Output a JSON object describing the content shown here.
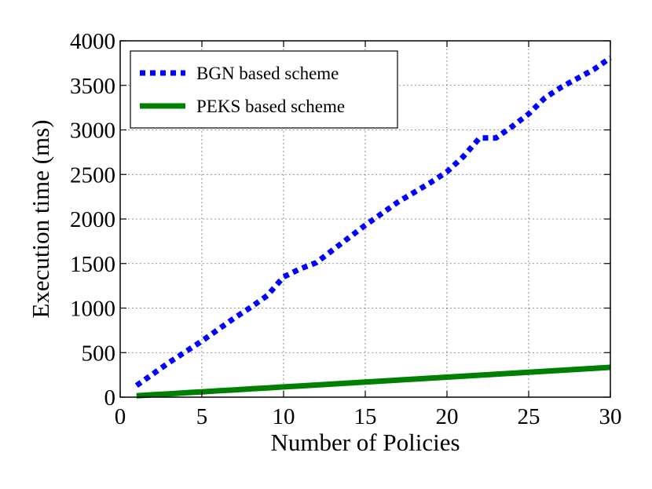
{
  "chart_data": {
    "type": "line",
    "title": "",
    "xlabel": "Number of Policies",
    "ylabel": "Execution time (ms)",
    "xlim": [
      0,
      30
    ],
    "ylim": [
      0,
      4000
    ],
    "xticks": [
      0,
      5,
      10,
      15,
      20,
      25,
      30
    ],
    "yticks": [
      0,
      500,
      1000,
      1500,
      2000,
      2500,
      3000,
      3500,
      4000
    ],
    "xtick_labels": [
      "0",
      "5",
      "10",
      "15",
      "20",
      "25",
      "30"
    ],
    "ytick_labels": [
      "0",
      "500",
      "1000",
      "1500",
      "2000",
      "2500",
      "3000",
      "3500",
      "4000"
    ],
    "grid": true,
    "legend_position": "top-left",
    "series": [
      {
        "name": "BGN based scheme",
        "color": "#0000ff",
        "style": "dotted",
        "x": [
          1,
          2,
          3,
          4,
          5,
          6,
          7,
          8,
          9,
          10,
          11,
          12,
          13,
          14,
          15,
          16,
          17,
          18,
          19,
          20,
          21,
          22,
          23,
          24,
          25,
          26,
          27,
          28,
          29,
          30
        ],
        "y": [
          130,
          260,
          390,
          510,
          630,
          760,
          890,
          1010,
          1140,
          1350,
          1440,
          1510,
          1650,
          1790,
          1930,
          2060,
          2190,
          2300,
          2410,
          2530,
          2700,
          2910,
          2910,
          3040,
          3180,
          3360,
          3480,
          3580,
          3680,
          3810
        ]
      },
      {
        "name": "PEKS based scheme",
        "color": "#008000",
        "style": "solid",
        "x": [
          1,
          2,
          3,
          4,
          5,
          6,
          7,
          8,
          9,
          10,
          11,
          12,
          13,
          14,
          15,
          16,
          17,
          18,
          19,
          20,
          21,
          22,
          23,
          24,
          25,
          26,
          27,
          28,
          29,
          30
        ],
        "y": [
          15,
          27,
          38,
          49,
          60,
          71,
          82,
          93,
          104,
          115,
          126,
          137,
          148,
          159,
          170,
          181,
          192,
          203,
          214,
          225,
          236,
          247,
          258,
          269,
          280,
          291,
          302,
          313,
          324,
          335
        ]
      }
    ]
  }
}
